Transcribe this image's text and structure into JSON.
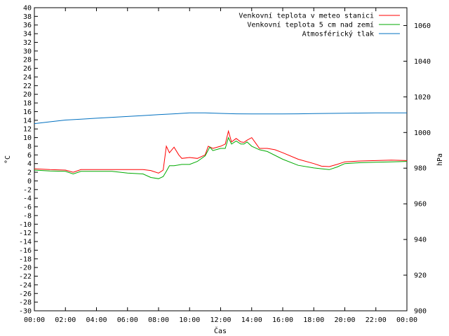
{
  "chart_data": {
    "type": "line",
    "xlabel": "Čas",
    "ylabel_left": "°C",
    "ylabel_right": "hPa",
    "xlim": [
      0,
      24
    ],
    "ylim_left": [
      -30,
      40
    ],
    "ylim_right": [
      900,
      1070
    ],
    "x_ticks": [
      "00:00",
      "02:00",
      "04:00",
      "06:00",
      "08:00",
      "10:00",
      "12:00",
      "14:00",
      "16:00",
      "18:00",
      "20:00",
      "22:00",
      "00:00"
    ],
    "y_ticks_left": [
      -30,
      -28,
      -26,
      -24,
      -22,
      -20,
      -18,
      -16,
      -14,
      -12,
      -10,
      -8,
      -6,
      -4,
      -2,
      0,
      2,
      4,
      6,
      8,
      10,
      12,
      14,
      16,
      18,
      20,
      22,
      24,
      26,
      28,
      30,
      32,
      34,
      36,
      38,
      40
    ],
    "y_ticks_right": [
      900,
      920,
      940,
      960,
      980,
      1000,
      1020,
      1040,
      1060
    ],
    "grid": false,
    "legend_position": "top-right",
    "series": [
      {
        "name": "Venkovní teplota v meteo stanici",
        "color": "#ff0000",
        "axis": "left",
        "x": [
          0,
          1,
          2,
          2.5,
          3,
          4,
          5,
          6,
          7,
          7.5,
          8,
          8.3,
          8.5,
          8.7,
          9,
          9.3,
          9.5,
          10,
          10.5,
          11,
          11.2,
          11.5,
          12,
          12.3,
          12.5,
          12.7,
          13,
          13.3,
          13.5,
          13.7,
          14,
          14.3,
          14.5,
          15,
          15.5,
          16,
          17,
          18,
          18.5,
          19,
          19.5,
          20,
          21,
          22,
          23,
          24
        ],
        "y": [
          2.8,
          2.6,
          2.5,
          2.0,
          2.6,
          2.6,
          2.6,
          2.6,
          2.6,
          2.4,
          1.8,
          2.5,
          8.0,
          6.5,
          7.8,
          6.0,
          5.2,
          5.4,
          5.2,
          6.0,
          8.0,
          7.5,
          8.0,
          8.5,
          11.5,
          9.0,
          9.8,
          9.0,
          8.9,
          9.4,
          10.0,
          8.5,
          7.5,
          7.5,
          7.2,
          6.5,
          5.0,
          4.0,
          3.4,
          3.3,
          3.8,
          4.4,
          4.6,
          4.7,
          4.8,
          4.7
        ]
      },
      {
        "name": "Venkovní teplota 5 cm nad zemí",
        "color": "#00aa00",
        "axis": "left",
        "x": [
          0,
          1,
          2,
          2.5,
          3,
          4,
          5,
          6,
          7,
          7.5,
          8,
          8.3,
          8.5,
          8.7,
          9,
          9.5,
          10,
          10.5,
          11,
          11.3,
          11.5,
          12,
          12.3,
          12.5,
          12.7,
          13,
          13.3,
          13.5,
          13.7,
          14,
          14.5,
          15,
          16,
          17,
          18,
          18.5,
          19,
          19.5,
          20,
          21,
          22,
          23,
          24
        ],
        "y": [
          2.5,
          2.3,
          2.2,
          1.6,
          2.2,
          2.2,
          2.2,
          1.8,
          1.6,
          0.8,
          0.5,
          1.0,
          2.2,
          3.5,
          3.5,
          3.8,
          3.8,
          4.5,
          5.8,
          7.8,
          7.0,
          7.5,
          7.5,
          10.0,
          8.5,
          9.2,
          8.5,
          8.5,
          9.0,
          8.0,
          7.2,
          6.8,
          5.0,
          3.6,
          3.0,
          2.8,
          2.6,
          3.2,
          4.0,
          4.2,
          4.3,
          4.4,
          4.5
        ]
      },
      {
        "name": "Atmosférický tlak",
        "color": "#0070c0",
        "axis": "right",
        "x": [
          0,
          1,
          2,
          3,
          4,
          5,
          6,
          7,
          8,
          9,
          10,
          11,
          12,
          13,
          14,
          15,
          16,
          17,
          18,
          19,
          20,
          21,
          22,
          23,
          24
        ],
        "y": [
          1005,
          1006,
          1007,
          1007.5,
          1008,
          1008.5,
          1009,
          1009.5,
          1010,
          1010.5,
          1011,
          1011,
          1010.7,
          1010.5,
          1010.4,
          1010.4,
          1010.4,
          1010.5,
          1010.6,
          1010.7,
          1010.8,
          1010.9,
          1011,
          1011,
          1011
        ]
      }
    ]
  }
}
